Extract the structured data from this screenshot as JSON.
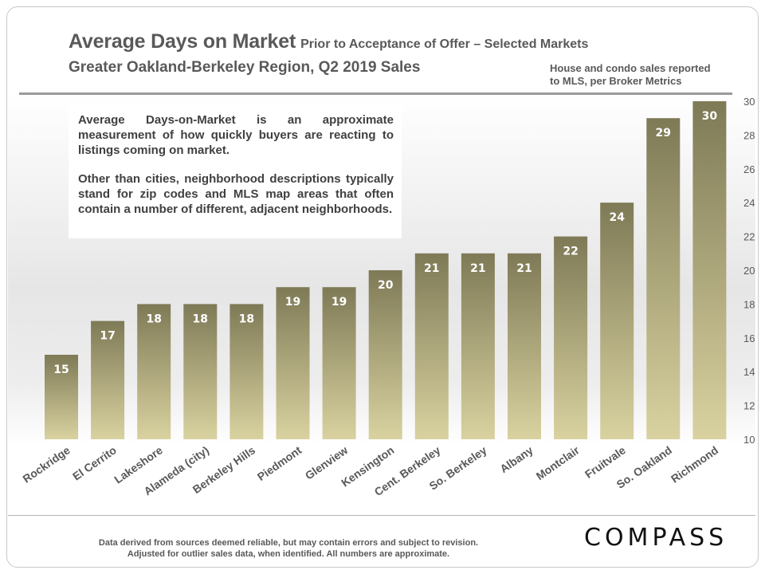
{
  "header": {
    "title": "Average Days on Market",
    "title_suffix": "Prior to Acceptance of Offer – Selected Markets",
    "subtitle": "Greater Oakland-Berkeley Region, Q2 2019 Sales",
    "note_line1": "House and condo sales reported",
    "note_line2": "to MLS, per Broker Metrics"
  },
  "info_box": {
    "paragraph1": "Average Days-on-Market is an approximate measurement of how quickly buyers are reacting to listings coming on market.",
    "paragraph2": "Other than cities, neighborhood descriptions typically stand for zip codes and MLS map areas that often contain a number of different, adjacent neighborhoods."
  },
  "footer": {
    "line1": "Data derived from sources deemed reliable, but may contain errors and subject to revision.",
    "line2": "Adjusted for outlier sales data, when identified. All numbers are approximate."
  },
  "logo_text": "COMPASS",
  "colors": {
    "bar_top": "#7e7a56",
    "bar_bottom": "#d9d2a0",
    "bar_label": "#ffffff",
    "axis_text": "#595959"
  },
  "chart_data": {
    "type": "bar",
    "title": "Average Days on Market",
    "subtitle": "Greater Oakland-Berkeley Region, Q2 2019 Sales",
    "categories": [
      "Rockridge",
      "El Cerrito",
      "Lakeshore",
      "Alameda (city)",
      "Berkeley Hills",
      "Piedmont",
      "Glenview",
      "Kensington",
      "Cent. Berkeley",
      "So. Berkeley",
      "Albany",
      "Montclair",
      "Fruitvale",
      "So. Oakland",
      "Richmond"
    ],
    "values": [
      15,
      17,
      18,
      18,
      18,
      19,
      19,
      20,
      21,
      21,
      21,
      22,
      24,
      29,
      30
    ],
    "ylim": [
      10,
      30
    ],
    "yticks": [
      10,
      12,
      14,
      16,
      18,
      20,
      22,
      24,
      26,
      28,
      30
    ],
    "y_axis_position": "right",
    "data_labels": true,
    "grid": false,
    "legend": "none"
  }
}
